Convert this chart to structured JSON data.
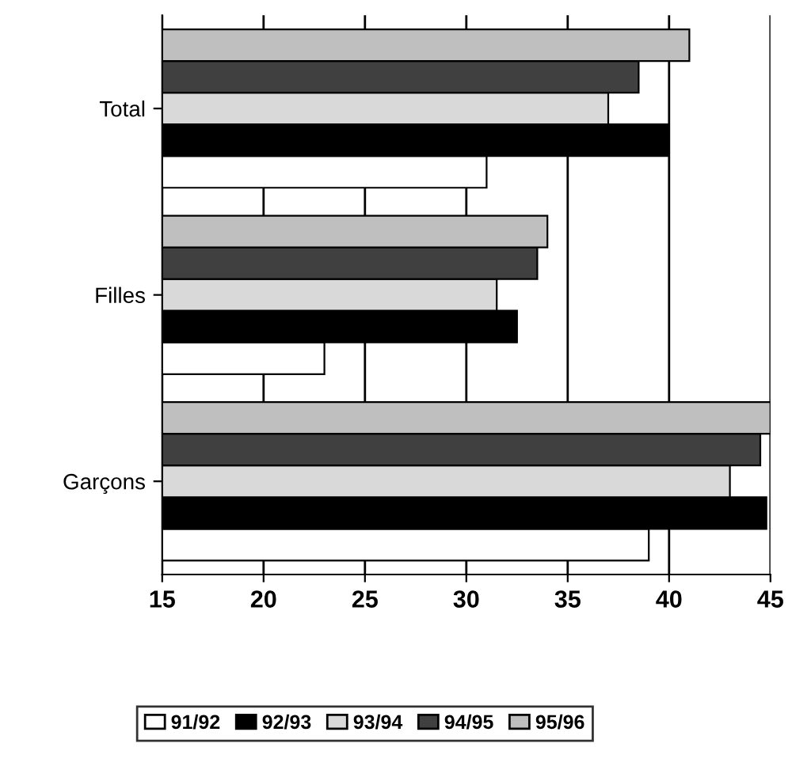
{
  "chart_data": {
    "type": "bar",
    "orientation": "horizontal",
    "categories": [
      "Total",
      "Filles",
      "Garçons"
    ],
    "series": [
      {
        "name": "91/92",
        "color": "#ffffff",
        "values": [
          31,
          23,
          39
        ]
      },
      {
        "name": "92/93",
        "color": "#000000",
        "values": [
          40,
          32.5,
          44.8
        ]
      },
      {
        "name": "93/94",
        "color": "#d9d9d9",
        "values": [
          37,
          31.5,
          43
        ]
      },
      {
        "name": "94/95",
        "color": "#404040",
        "values": [
          38.5,
          33.5,
          44.5
        ]
      },
      {
        "name": "95/96",
        "color": "#bfbfbf",
        "values": [
          41,
          34,
          45
        ]
      }
    ],
    "xlim": [
      15,
      45
    ],
    "xticks": [
      15,
      20,
      25,
      30,
      35,
      40,
      45
    ],
    "grid": "x",
    "legend": "bottom"
  }
}
